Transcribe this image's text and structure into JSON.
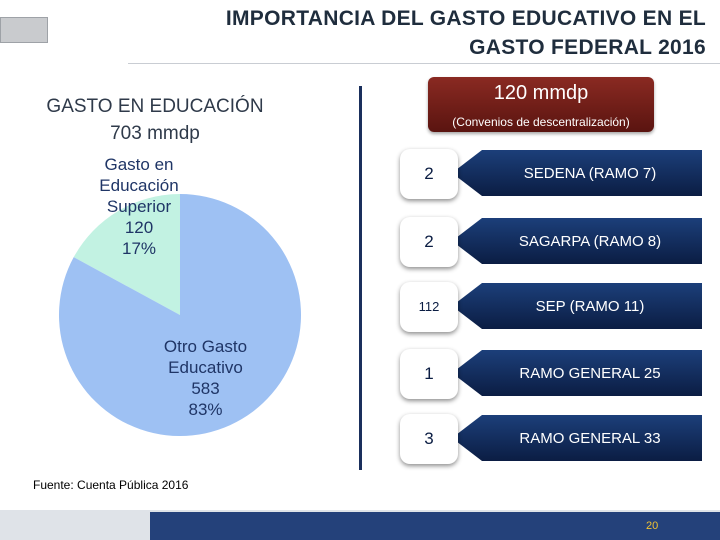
{
  "header": {
    "title_line1": "IMPORTANCIA DEL GASTO EDUCATIVO EN EL",
    "title_line2": "GASTO FEDERAL 2016"
  },
  "left": {
    "title_line1": "GASTO EN EDUCACIÓN",
    "title_line2": "703 mmdp"
  },
  "chart_data": {
    "type": "pie",
    "title": "",
    "total": 703,
    "slices": [
      {
        "label": "Gasto en Educación Superior",
        "value": 120,
        "percent": "17%",
        "color": "#c2f2e2"
      },
      {
        "label": "Otro Gasto Educativo",
        "value": 583,
        "percent": "83%",
        "color": "#9ec1f3"
      }
    ]
  },
  "pie_labels": {
    "sup": {
      "line1": "Gasto en",
      "line2": "Educación",
      "line3": "Superior",
      "value": "120",
      "percent": "17%"
    },
    "otro": {
      "line1": "Otro Gasto",
      "line2": "Educativo",
      "value": "583",
      "percent": "83%"
    }
  },
  "right": {
    "amount": "120 mmdp",
    "subtitle": "(Convenios de descentralización)",
    "rows": [
      {
        "value": "2",
        "label": "SEDENA (RAMO 7)"
      },
      {
        "value": "2",
        "label": "SAGARPA (RAMO 8)"
      },
      {
        "value": "112",
        "label": "SEP (RAMO 11)"
      },
      {
        "value": "1",
        "label": "RAMO GENERAL 25"
      },
      {
        "value": "3",
        "label": "RAMO GENERAL 33"
      }
    ]
  },
  "source": "Fuente: Cuenta Pública 2016",
  "page_number": "20"
}
